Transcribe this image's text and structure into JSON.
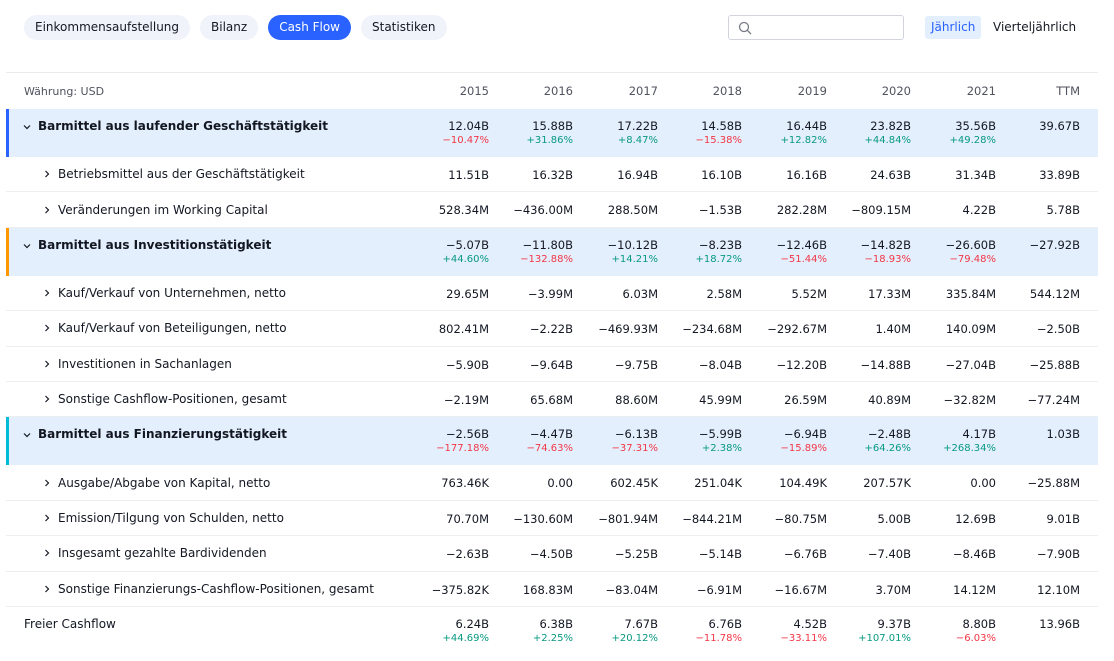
{
  "tabs": [
    {
      "label": "Einkommensaufstellung",
      "active": false
    },
    {
      "label": "Bilanz",
      "active": false
    },
    {
      "label": "Cash Flow",
      "active": true
    },
    {
      "label": "Statistiken",
      "active": false
    }
  ],
  "search": {
    "placeholder": "",
    "value": "",
    "icon": "search-icon"
  },
  "period": {
    "annual": "Jährlich",
    "quarterly": "Vierteljährlich",
    "selected": "annual"
  },
  "colors": {
    "accent": "#2962ff",
    "section_bg": "#e3effd",
    "positive": "#089981",
    "negative": "#f23645",
    "operating_bar": "#2962ff",
    "investing_bar": "#ff9800",
    "financing_bar": "#00bcd4"
  },
  "table": {
    "currency_label": "Währung: USD",
    "columns": [
      "2015",
      "2016",
      "2017",
      "2018",
      "2019",
      "2020",
      "2021",
      "TTM"
    ],
    "rows": [
      {
        "type": "section",
        "label": "Barmittel aus laufender Geschäftstätigkeit",
        "bar": "operating_bar",
        "values": [
          "12.04B",
          "15.88B",
          "17.22B",
          "14.58B",
          "16.44B",
          "23.82B",
          "35.56B",
          "39.67B"
        ],
        "changes": [
          "−10.47%",
          "+31.86%",
          "+8.47%",
          "−15.38%",
          "+12.82%",
          "+44.84%",
          "+49.28%",
          ""
        ]
      },
      {
        "type": "sub",
        "label": "Betriebsmittel aus der Geschäftstätigkeit",
        "values": [
          "11.51B",
          "16.32B",
          "16.94B",
          "16.10B",
          "16.16B",
          "24.63B",
          "31.34B",
          "33.89B"
        ]
      },
      {
        "type": "sub",
        "label": "Veränderungen im Working Capital",
        "values": [
          "528.34M",
          "−436.00M",
          "288.50M",
          "−1.53B",
          "282.28M",
          "−809.15M",
          "4.22B",
          "5.78B"
        ]
      },
      {
        "type": "section",
        "label": "Barmittel aus Investitionstätigkeit",
        "bar": "investing_bar",
        "values": [
          "−5.07B",
          "−11.80B",
          "−10.12B",
          "−8.23B",
          "−12.46B",
          "−14.82B",
          "−26.60B",
          "−27.92B"
        ],
        "changes": [
          "+44.60%",
          "−132.88%",
          "+14.21%",
          "+18.72%",
          "−51.44%",
          "−18.93%",
          "−79.48%",
          ""
        ]
      },
      {
        "type": "sub",
        "label": "Kauf/Verkauf von Unternehmen, netto",
        "values": [
          "29.65M",
          "−3.99M",
          "6.03M",
          "2.58M",
          "5.52M",
          "17.33M",
          "335.84M",
          "544.12M"
        ]
      },
      {
        "type": "sub",
        "label": "Kauf/Verkauf von Beteiligungen, netto",
        "values": [
          "802.41M",
          "−2.22B",
          "−469.93M",
          "−234.68M",
          "−292.67M",
          "1.40M",
          "140.09M",
          "−2.50B"
        ]
      },
      {
        "type": "sub",
        "label": "Investitionen in Sachanlagen",
        "values": [
          "−5.90B",
          "−9.64B",
          "−9.75B",
          "−8.04B",
          "−12.20B",
          "−14.88B",
          "−27.04B",
          "−25.88B"
        ]
      },
      {
        "type": "sub",
        "label": "Sonstige Cashflow-Positionen, gesamt",
        "values": [
          "−2.19M",
          "65.68M",
          "88.60M",
          "45.99M",
          "26.59M",
          "40.89M",
          "−32.82M",
          "−77.24M"
        ]
      },
      {
        "type": "section",
        "label": "Barmittel aus Finanzierungstätigkeit",
        "bar": "financing_bar",
        "values": [
          "−2.56B",
          "−4.47B",
          "−6.13B",
          "−5.99B",
          "−6.94B",
          "−2.48B",
          "4.17B",
          "1.03B"
        ],
        "changes": [
          "−177.18%",
          "−74.63%",
          "−37.31%",
          "+2.38%",
          "−15.89%",
          "+64.26%",
          "+268.34%",
          ""
        ]
      },
      {
        "type": "sub",
        "label": "Ausgabe/Abgabe von Kapital, netto",
        "values": [
          "763.46K",
          "0.00",
          "602.45K",
          "251.04K",
          "104.49K",
          "207.57K",
          "0.00",
          "−25.88M"
        ]
      },
      {
        "type": "sub",
        "label": "Emission/Tilgung von Schulden, netto",
        "values": [
          "70.70M",
          "−130.60M",
          "−801.94M",
          "−844.21M",
          "−80.75M",
          "5.00B",
          "12.69B",
          "9.01B"
        ]
      },
      {
        "type": "sub",
        "label": "Insgesamt gezahlte Bardividenden",
        "values": [
          "−2.63B",
          "−4.50B",
          "−5.25B",
          "−5.14B",
          "−6.76B",
          "−7.40B",
          "−8.46B",
          "−7.90B"
        ]
      },
      {
        "type": "sub",
        "label": "Sonstige Finanzierungs-Cashflow-Positionen, gesamt",
        "values": [
          "−375.82K",
          "168.83M",
          "−83.04M",
          "−6.91M",
          "−16.67M",
          "3.70M",
          "14.12M",
          "12.10M"
        ]
      },
      {
        "type": "fcf",
        "label": "Freier Cashflow",
        "values": [
          "6.24B",
          "6.38B",
          "7.67B",
          "6.76B",
          "4.52B",
          "9.37B",
          "8.80B",
          "13.96B"
        ],
        "changes": [
          "+44.69%",
          "+2.25%",
          "+20.12%",
          "−11.78%",
          "−33.11%",
          "+107.01%",
          "−6.03%",
          ""
        ]
      }
    ]
  }
}
